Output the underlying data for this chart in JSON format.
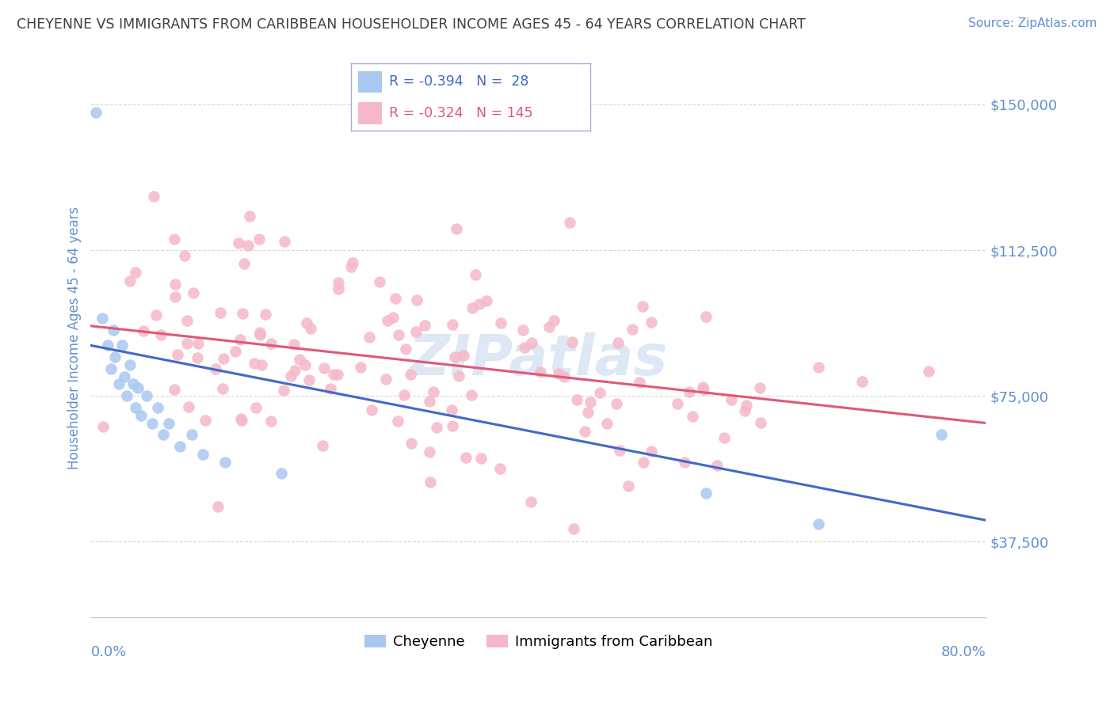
{
  "title": "CHEYENNE VS IMMIGRANTS FROM CARIBBEAN HOUSEHOLDER INCOME AGES 45 - 64 YEARS CORRELATION CHART",
  "source": "Source: ZipAtlas.com",
  "ylabel": "Householder Income Ages 45 - 64 years",
  "ytick_labels": [
    "$37,500",
    "$75,000",
    "$112,500",
    "$150,000"
  ],
  "ytick_values": [
    37500,
    75000,
    112500,
    150000
  ],
  "ylim": [
    18000,
    162000
  ],
  "xlim": [
    0.0,
    0.8
  ],
  "legend_blue_R": "-0.394",
  "legend_blue_N": "28",
  "legend_pink_R": "-0.324",
  "legend_pink_N": "145",
  "blue_color": "#a8c8f0",
  "pink_color": "#f5b8c8",
  "blue_line_color": "#4169c8",
  "pink_line_color": "#e05878",
  "title_color": "#404040",
  "source_color": "#6090d0",
  "axis_label_color": "#6090d0",
  "tick_color": "#6090d0",
  "grid_color": "#d8d8d8",
  "blue_line_x0": 0.0,
  "blue_line_y0": 88000,
  "blue_line_x1": 0.8,
  "blue_line_y1": 43000,
  "pink_line_x0": 0.0,
  "pink_line_y0": 93000,
  "pink_line_x1": 0.8,
  "pink_line_y1": 68000,
  "watermark": "ZIPatlas",
  "watermark_color": "#c8d8ee",
  "legend_box_color": "#aaaacc"
}
